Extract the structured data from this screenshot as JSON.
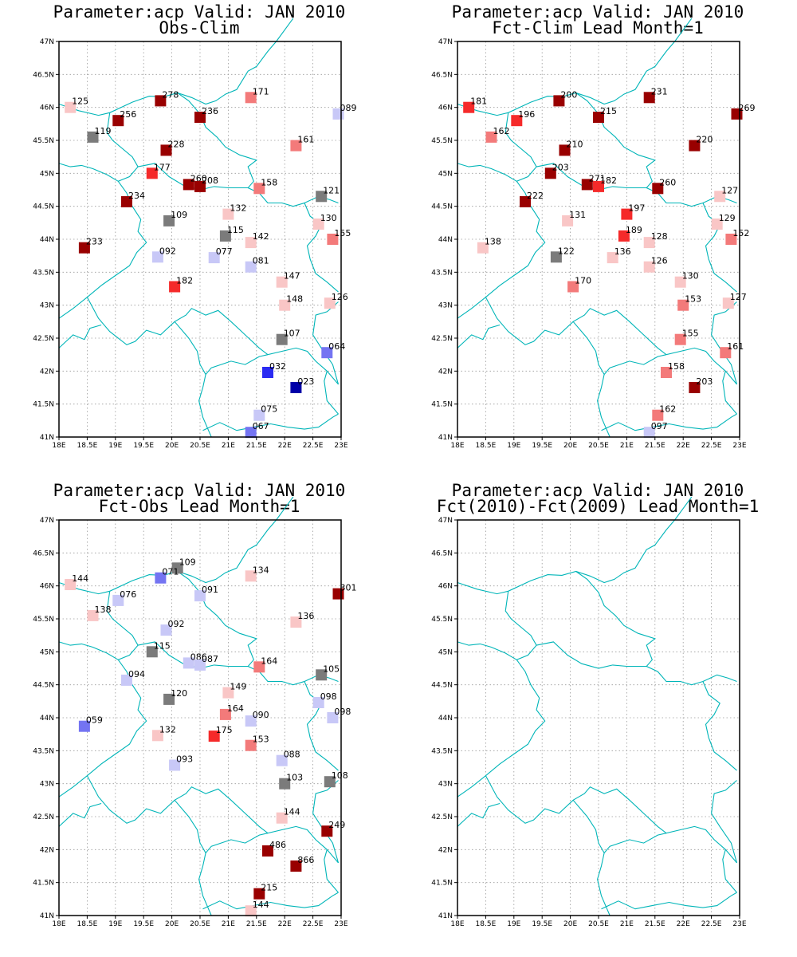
{
  "x_ticks": [
    "18E",
    "18.5E",
    "19E",
    "19.5E",
    "20E",
    "20.5E",
    "21E",
    "21.5E",
    "22E",
    "22.5E",
    "23E"
  ],
  "y_ticks": [
    "41N",
    "41.5N",
    "42N",
    "42.5N",
    "43N",
    "43.5N",
    "44N",
    "44.5N",
    "45N",
    "45.5N",
    "46N",
    "46.5N",
    "47N"
  ],
  "colors": {
    "dark_red": "#990000",
    "red": "#f52a2a",
    "salmon": "#f37a7a",
    "light_pink": "#f9c6c6",
    "gray": "#7b7b7b",
    "lavender": "#c8c8f7",
    "medium_blue": "#7474f2",
    "blue": "#2b2bf2",
    "dark_blue": "#0000a8",
    "coast": "#00b5b8"
  },
  "panels": [
    {
      "title_line1": "Parameter:acp Valid: JAN 2010",
      "title_line2": "Obs-Clim",
      "stations": [
        {
          "lon": 18.2,
          "lat": 46.0,
          "label": "125",
          "color": "light_pink"
        },
        {
          "lon": 19.8,
          "lat": 46.1,
          "label": "278",
          "color": "dark_red"
        },
        {
          "lon": 21.4,
          "lat": 46.15,
          "label": "171",
          "color": "salmon"
        },
        {
          "lon": 22.95,
          "lat": 45.9,
          "label": "089",
          "color": "lavender"
        },
        {
          "lon": 19.05,
          "lat": 45.8,
          "label": "256",
          "color": "dark_red"
        },
        {
          "lon": 20.5,
          "lat": 45.85,
          "label": "236",
          "color": "dark_red"
        },
        {
          "lon": 18.6,
          "lat": 45.55,
          "label": "119",
          "color": "gray"
        },
        {
          "lon": 22.2,
          "lat": 45.42,
          "label": "161",
          "color": "salmon"
        },
        {
          "lon": 19.9,
          "lat": 45.35,
          "label": "228",
          "color": "dark_red"
        },
        {
          "lon": 19.65,
          "lat": 45.0,
          "label": "177",
          "color": "red"
        },
        {
          "lon": 20.3,
          "lat": 44.83,
          "label": "260",
          "color": "dark_red"
        },
        {
          "lon": 20.5,
          "lat": 44.8,
          "label": "208",
          "color": "dark_red"
        },
        {
          "lon": 21.55,
          "lat": 44.77,
          "label": "158",
          "color": "salmon"
        },
        {
          "lon": 22.65,
          "lat": 44.65,
          "label": "121",
          "color": "gray"
        },
        {
          "lon": 19.2,
          "lat": 44.57,
          "label": "234",
          "color": "dark_red"
        },
        {
          "lon": 21.0,
          "lat": 44.38,
          "label": "132",
          "color": "light_pink"
        },
        {
          "lon": 19.95,
          "lat": 44.28,
          "label": "109",
          "color": "gray"
        },
        {
          "lon": 22.6,
          "lat": 44.23,
          "label": "130",
          "color": "light_pink"
        },
        {
          "lon": 20.95,
          "lat": 44.05,
          "label": "115",
          "color": "gray"
        },
        {
          "lon": 21.4,
          "lat": 43.95,
          "label": "142",
          "color": "light_pink"
        },
        {
          "lon": 22.85,
          "lat": 44.0,
          "label": "155",
          "color": "salmon"
        },
        {
          "lon": 18.45,
          "lat": 43.87,
          "label": "233",
          "color": "dark_red"
        },
        {
          "lon": 19.75,
          "lat": 43.73,
          "label": "092",
          "color": "lavender"
        },
        {
          "lon": 20.75,
          "lat": 43.72,
          "label": "077",
          "color": "lavender"
        },
        {
          "lon": 21.4,
          "lat": 43.58,
          "label": "081",
          "color": "lavender"
        },
        {
          "lon": 21.95,
          "lat": 43.35,
          "label": "147",
          "color": "light_pink"
        },
        {
          "lon": 20.05,
          "lat": 43.28,
          "label": "182",
          "color": "red"
        },
        {
          "lon": 22.0,
          "lat": 43.0,
          "label": "148",
          "color": "light_pink"
        },
        {
          "lon": 22.8,
          "lat": 43.03,
          "label": "126",
          "color": "light_pink"
        },
        {
          "lon": 21.95,
          "lat": 42.48,
          "label": "107",
          "color": "gray"
        },
        {
          "lon": 22.75,
          "lat": 42.28,
          "label": "064",
          "color": "medium_blue"
        },
        {
          "lon": 21.7,
          "lat": 41.98,
          "label": "032",
          "color": "blue"
        },
        {
          "lon": 22.2,
          "lat": 41.75,
          "label": "023",
          "color": "dark_blue"
        },
        {
          "lon": 21.55,
          "lat": 41.33,
          "label": "075",
          "color": "lavender"
        },
        {
          "lon": 21.4,
          "lat": 41.07,
          "label": "067",
          "color": "medium_blue"
        }
      ]
    },
    {
      "title_line1": "Parameter:acp Valid: JAN 2010",
      "title_line2": "Fct-Clim Lead Month=1",
      "stations": [
        {
          "lon": 18.2,
          "lat": 46.0,
          "label": "181",
          "color": "red"
        },
        {
          "lon": 19.8,
          "lat": 46.1,
          "label": "200",
          "color": "dark_red"
        },
        {
          "lon": 21.4,
          "lat": 46.15,
          "label": "231",
          "color": "dark_red"
        },
        {
          "lon": 22.95,
          "lat": 45.9,
          "label": "269",
          "color": "dark_red"
        },
        {
          "lon": 19.05,
          "lat": 45.8,
          "label": "196",
          "color": "red"
        },
        {
          "lon": 20.5,
          "lat": 45.85,
          "label": "215",
          "color": "dark_red"
        },
        {
          "lon": 18.6,
          "lat": 45.55,
          "label": "162",
          "color": "salmon"
        },
        {
          "lon": 22.2,
          "lat": 45.42,
          "label": "220",
          "color": "dark_red"
        },
        {
          "lon": 19.9,
          "lat": 45.35,
          "label": "210",
          "color": "dark_red"
        },
        {
          "lon": 19.65,
          "lat": 45.0,
          "label": "203",
          "color": "dark_red"
        },
        {
          "lon": 20.3,
          "lat": 44.83,
          "label": "271",
          "color": "dark_red"
        },
        {
          "lon": 20.5,
          "lat": 44.8,
          "label": "182",
          "color": "red"
        },
        {
          "lon": 21.55,
          "lat": 44.77,
          "label": "260",
          "color": "dark_red"
        },
        {
          "lon": 22.65,
          "lat": 44.65,
          "label": "127",
          "color": "light_pink"
        },
        {
          "lon": 19.2,
          "lat": 44.57,
          "label": "222",
          "color": "dark_red"
        },
        {
          "lon": 21.0,
          "lat": 44.38,
          "label": "197",
          "color": "red"
        },
        {
          "lon": 19.95,
          "lat": 44.28,
          "label": "131",
          "color": "light_pink"
        },
        {
          "lon": 22.6,
          "lat": 44.23,
          "label": "129",
          "color": "light_pink"
        },
        {
          "lon": 20.95,
          "lat": 44.05,
          "label": "189",
          "color": "red"
        },
        {
          "lon": 21.4,
          "lat": 43.95,
          "label": "128",
          "color": "light_pink"
        },
        {
          "lon": 22.85,
          "lat": 44.0,
          "label": "152",
          "color": "salmon"
        },
        {
          "lon": 18.45,
          "lat": 43.87,
          "label": "138",
          "color": "light_pink"
        },
        {
          "lon": 19.75,
          "lat": 43.73,
          "label": "122",
          "color": "gray"
        },
        {
          "lon": 20.75,
          "lat": 43.72,
          "label": "136",
          "color": "light_pink"
        },
        {
          "lon": 21.4,
          "lat": 43.58,
          "label": "126",
          "color": "light_pink"
        },
        {
          "lon": 21.95,
          "lat": 43.35,
          "label": "130",
          "color": "light_pink"
        },
        {
          "lon": 20.05,
          "lat": 43.28,
          "label": "170",
          "color": "salmon"
        },
        {
          "lon": 22.0,
          "lat": 43.0,
          "label": "153",
          "color": "salmon"
        },
        {
          "lon": 22.8,
          "lat": 43.03,
          "label": "127",
          "color": "light_pink"
        },
        {
          "lon": 21.95,
          "lat": 42.48,
          "label": "155",
          "color": "salmon"
        },
        {
          "lon": 22.75,
          "lat": 42.28,
          "label": "161",
          "color": "salmon"
        },
        {
          "lon": 21.7,
          "lat": 41.98,
          "label": "158",
          "color": "salmon"
        },
        {
          "lon": 22.2,
          "lat": 41.75,
          "label": "203",
          "color": "dark_red"
        },
        {
          "lon": 21.55,
          "lat": 41.33,
          "label": "162",
          "color": "salmon"
        },
        {
          "lon": 21.4,
          "lat": 41.07,
          "label": "097",
          "color": "lavender"
        }
      ]
    },
    {
      "title_line1": "Parameter:acp Valid: JAN 2010",
      "title_line2": "Fct-Obs Lead Month=1",
      "stations": [
        {
          "lon": 18.2,
          "lat": 46.02,
          "label": "144",
          "color": "light_pink"
        },
        {
          "lon": 20.1,
          "lat": 46.27,
          "label": "109",
          "color": "gray"
        },
        {
          "lon": 19.8,
          "lat": 46.12,
          "label": "071",
          "color": "medium_blue"
        },
        {
          "lon": 21.4,
          "lat": 46.15,
          "label": "134",
          "color": "light_pink"
        },
        {
          "lon": 22.95,
          "lat": 45.88,
          "label": "301",
          "color": "dark_red"
        },
        {
          "lon": 19.05,
          "lat": 45.78,
          "label": "076",
          "color": "lavender"
        },
        {
          "lon": 20.5,
          "lat": 45.85,
          "label": "091",
          "color": "lavender"
        },
        {
          "lon": 18.6,
          "lat": 45.55,
          "label": "138",
          "color": "light_pink"
        },
        {
          "lon": 22.2,
          "lat": 45.45,
          "label": "136",
          "color": "light_pink"
        },
        {
          "lon": 19.9,
          "lat": 45.33,
          "label": "092",
          "color": "lavender"
        },
        {
          "lon": 19.65,
          "lat": 45.0,
          "label": "115",
          "color": "gray"
        },
        {
          "lon": 20.3,
          "lat": 44.83,
          "label": "086",
          "color": "lavender"
        },
        {
          "lon": 20.5,
          "lat": 44.8,
          "label": "087",
          "color": "lavender"
        },
        {
          "lon": 21.55,
          "lat": 44.77,
          "label": "164",
          "color": "salmon"
        },
        {
          "lon": 22.65,
          "lat": 44.65,
          "label": "105",
          "color": "gray"
        },
        {
          "lon": 19.2,
          "lat": 44.57,
          "label": "094",
          "color": "lavender"
        },
        {
          "lon": 21.0,
          "lat": 44.38,
          "label": "149",
          "color": "light_pink"
        },
        {
          "lon": 19.95,
          "lat": 44.28,
          "label": "120",
          "color": "gray"
        },
        {
          "lon": 22.6,
          "lat": 44.23,
          "label": "098",
          "color": "lavender"
        },
        {
          "lon": 20.95,
          "lat": 44.05,
          "label": "164",
          "color": "salmon"
        },
        {
          "lon": 21.4,
          "lat": 43.95,
          "label": "090",
          "color": "lavender"
        },
        {
          "lon": 22.85,
          "lat": 44.0,
          "label": "098",
          "color": "lavender"
        },
        {
          "lon": 18.45,
          "lat": 43.87,
          "label": "059",
          "color": "medium_blue"
        },
        {
          "lon": 19.75,
          "lat": 43.73,
          "label": "132",
          "color": "light_pink"
        },
        {
          "lon": 20.75,
          "lat": 43.72,
          "label": "175",
          "color": "red"
        },
        {
          "lon": 21.4,
          "lat": 43.58,
          "label": "153",
          "color": "salmon"
        },
        {
          "lon": 21.95,
          "lat": 43.35,
          "label": "088",
          "color": "lavender"
        },
        {
          "lon": 20.05,
          "lat": 43.28,
          "label": "093",
          "color": "lavender"
        },
        {
          "lon": 22.0,
          "lat": 43.0,
          "label": "103",
          "color": "gray"
        },
        {
          "lon": 22.8,
          "lat": 43.03,
          "label": "108",
          "color": "gray"
        },
        {
          "lon": 21.95,
          "lat": 42.48,
          "label": "144",
          "color": "light_pink"
        },
        {
          "lon": 22.75,
          "lat": 42.28,
          "label": "249",
          "color": "dark_red"
        },
        {
          "lon": 21.7,
          "lat": 41.98,
          "label": "486",
          "color": "dark_red"
        },
        {
          "lon": 22.2,
          "lat": 41.75,
          "label": "866",
          "color": "dark_red"
        },
        {
          "lon": 21.55,
          "lat": 41.33,
          "label": "215",
          "color": "dark_red"
        },
        {
          "lon": 21.4,
          "lat": 41.07,
          "label": "144",
          "color": "light_pink"
        }
      ]
    },
    {
      "title_line1": "Parameter:acp Valid: JAN 2010",
      "title_line2": "Fct(2010)-Fct(2009) Lead Month=1",
      "stations": []
    }
  ]
}
